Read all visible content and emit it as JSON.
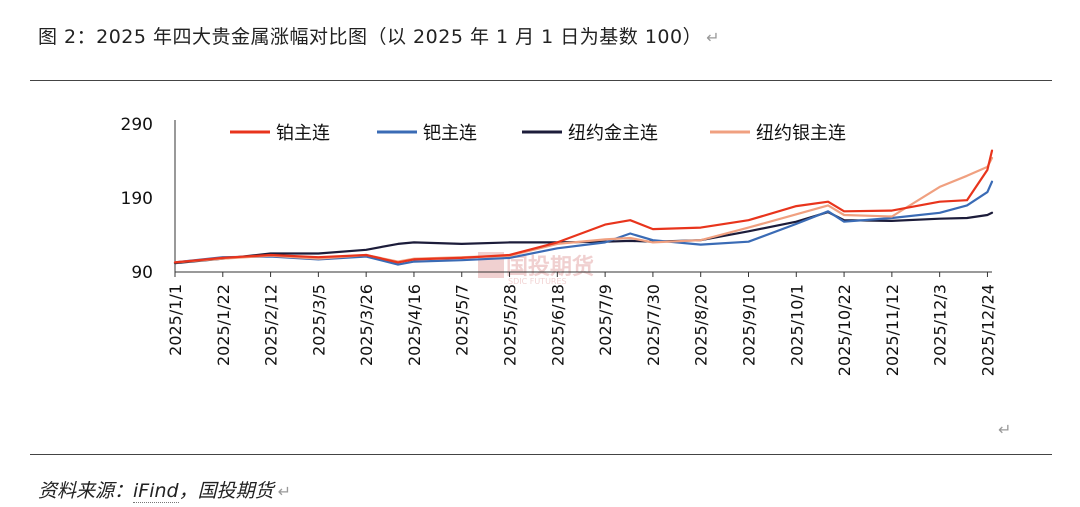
{
  "caption": {
    "text": "图 2：2025 年四大贵金属涨幅对比图（以 2025 年 1 月 1 日为基数 100）",
    "return_mark": "↵"
  },
  "source": {
    "prefix": "资料来源：",
    "link": "iFind",
    "suffix": "，国投期货",
    "return_mark": "↵"
  },
  "trailing_return_mark": "↵",
  "watermark": {
    "main": "国投期货",
    "sub": "SDIC FUTURES"
  },
  "colors": {
    "platinum": "#e8341c",
    "palladium": "#3a6bb5",
    "gold": "#1c1c3a",
    "silver": "#f0a080",
    "axis": "#333333"
  },
  "chart_data": {
    "type": "line",
    "title": "",
    "xlabel": "",
    "ylabel": "",
    "ylim": [
      90,
      290
    ],
    "yticks": [
      90,
      190,
      290
    ],
    "grid": false,
    "legend_position": "top",
    "x_tick_labels": [
      "2025/1/1",
      "2025/1/22",
      "2025/2/12",
      "2025/3/5",
      "2025/3/26",
      "2025/4/16",
      "2025/5/7",
      "2025/5/28",
      "2025/6/18",
      "2025/7/9",
      "2025/7/30",
      "2025/8/20",
      "2025/9/10",
      "2025/10/1",
      "2025/10/22",
      "2025/11/12",
      "2025/12/3",
      "2025/12/24"
    ],
    "x": [
      "2025/1/1",
      "2025/1/22",
      "2025/2/12",
      "2025/3/5",
      "2025/3/26",
      "2025/4/9",
      "2025/4/16",
      "2025/5/7",
      "2025/5/28",
      "2025/6/18",
      "2025/7/9",
      "2025/7/20",
      "2025/7/30",
      "2025/8/20",
      "2025/9/10",
      "2025/10/1",
      "2025/10/15",
      "2025/10/22",
      "2025/11/12",
      "2025/12/3",
      "2025/12/15",
      "2025/12/24",
      "2025/12/26"
    ],
    "series": [
      {
        "name": "铂主连",
        "key": "platinum",
        "values": [
          103,
          109,
          113,
          110,
          113,
          103,
          107,
          109,
          113,
          130,
          154,
          160,
          148,
          150,
          160,
          179,
          185,
          172,
          173,
          185,
          187,
          228,
          254
        ]
      },
      {
        "name": "钯主连",
        "key": "palladium",
        "values": [
          103,
          110,
          111,
          107,
          111,
          100,
          104,
          106,
          109,
          122,
          130,
          142,
          133,
          127,
          131,
          155,
          172,
          158,
          163,
          170,
          180,
          198,
          212
        ]
      },
      {
        "name": "纽约金主连",
        "key": "gold",
        "values": [
          102,
          108,
          115,
          115,
          120,
          128,
          130,
          128,
          130,
          130,
          131,
          132,
          131,
          133,
          145,
          158,
          171,
          160,
          159,
          162,
          163,
          167,
          170
        ]
      },
      {
        "name": "纽约银主连",
        "key": "silver",
        "values": [
          103,
          108,
          112,
          108,
          113,
          104,
          108,
          110,
          112,
          128,
          134,
          136,
          130,
          133,
          150,
          168,
          180,
          167,
          165,
          205,
          220,
          232,
          244
        ]
      }
    ]
  }
}
